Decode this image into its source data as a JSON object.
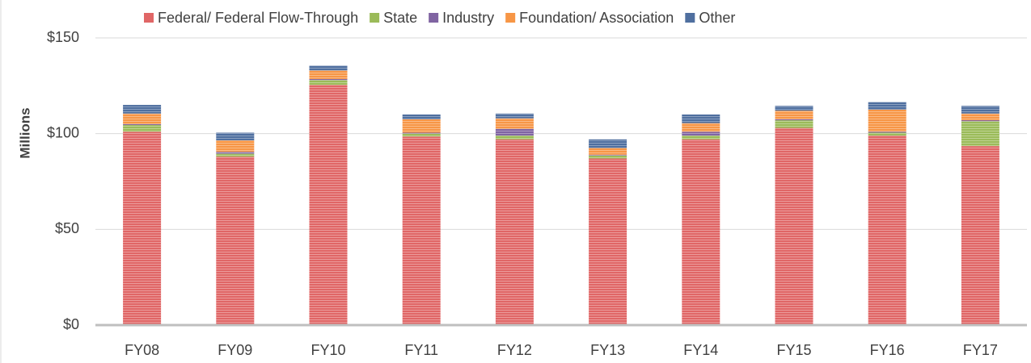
{
  "chart_data": {
    "type": "stacked-bar",
    "y_label": "Millions",
    "categories": [
      "FY08",
      "FY09",
      "FY10",
      "FY11",
      "FY12",
      "FY13",
      "FY14",
      "FY15",
      "FY16",
      "FY17"
    ],
    "series": [
      {
        "name": "Federal/ Federal Flow-Through",
        "color": "#e06666",
        "values": [
          101,
          88,
          125.5,
          98.5,
          97,
          87,
          97,
          103,
          99,
          93.5
        ]
      },
      {
        "name": "State",
        "color": "#9bbb59",
        "values": [
          3.5,
          1.5,
          2.5,
          1.5,
          2,
          1.5,
          2,
          4,
          1.5,
          13
        ]
      },
      {
        "name": "Industry",
        "color": "#8064a2",
        "values": [
          0.5,
          1,
          0.5,
          0.5,
          3.5,
          0.5,
          2,
          0.5,
          0.5,
          0.5
        ]
      },
      {
        "name": "Foundation/ Association",
        "color": "#f79646",
        "values": [
          5.5,
          6,
          4.5,
          7,
          5.5,
          3.5,
          4.5,
          4.5,
          11.5,
          3.5
        ]
      },
      {
        "name": "Other",
        "color": "#4f6f9f",
        "values": [
          4.5,
          4,
          2.5,
          2.5,
          2.5,
          4.5,
          4.5,
          2.5,
          4,
          4
        ]
      }
    ],
    "ylim": [
      0,
      150
    ],
    "yticks": [
      {
        "value": 0,
        "label": "$0"
      },
      {
        "value": 50,
        "label": "$50"
      },
      {
        "value": 100,
        "label": "$100"
      },
      {
        "value": 150,
        "label": "$150"
      }
    ],
    "grid": true,
    "legend": "top"
  }
}
